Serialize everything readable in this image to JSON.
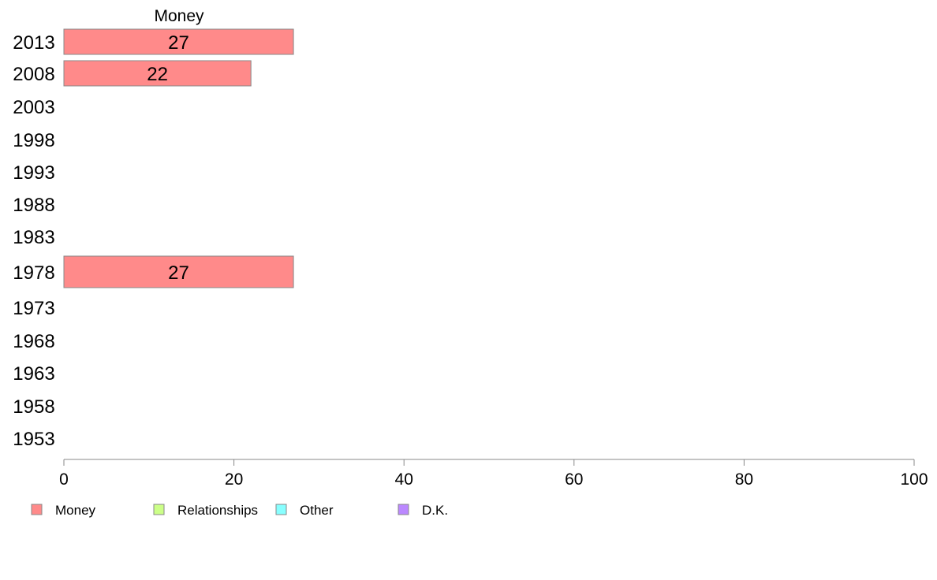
{
  "chart_data": {
    "type": "bar",
    "orientation": "horizontal",
    "stacked": true,
    "title": "",
    "xlabel": "",
    "ylabel": "",
    "xlim": [
      0,
      100
    ],
    "xticks": [
      0,
      20,
      40,
      60,
      80,
      100
    ],
    "grid": false,
    "legend_position": "bottom",
    "segment_title": "Money",
    "categories": [
      "2013",
      "2008",
      "2003",
      "1998",
      "1993",
      "1988",
      "1983",
      "1978",
      "1973",
      "1968",
      "1963",
      "1958",
      "1953"
    ],
    "series": [
      {
        "name": "Money",
        "color": "#ff8a8a",
        "values": [
          27,
          22,
          null,
          null,
          null,
          null,
          null,
          27,
          null,
          null,
          null,
          null,
          null
        ],
        "labels": [
          "27",
          "22",
          "",
          "",
          "",
          "",
          "",
          "27",
          "",
          "",
          "",
          "",
          ""
        ]
      },
      {
        "name": "Relationships",
        "color": "#ccff88",
        "values": [
          null,
          null,
          null,
          null,
          null,
          null,
          null,
          null,
          null,
          null,
          null,
          null,
          null
        ]
      },
      {
        "name": "Other",
        "color": "#88ffff",
        "values": [
          null,
          null,
          null,
          null,
          null,
          null,
          null,
          null,
          null,
          null,
          null,
          null,
          null
        ]
      },
      {
        "name": "D.K.",
        "color": "#bb88ff",
        "values": [
          null,
          null,
          null,
          null,
          null,
          null,
          null,
          null,
          null,
          null,
          null,
          null,
          null
        ]
      }
    ]
  }
}
